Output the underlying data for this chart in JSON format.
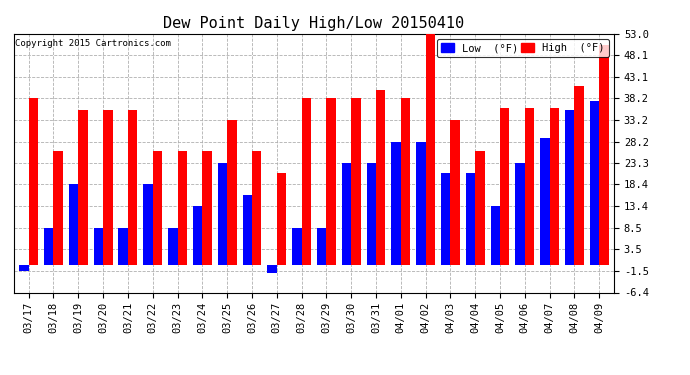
{
  "title": "Dew Point Daily High/Low 20150410",
  "copyright": "Copyright 2015 Cartronics.com",
  "categories": [
    "03/17",
    "03/18",
    "03/19",
    "03/20",
    "03/21",
    "03/22",
    "03/23",
    "03/24",
    "03/25",
    "03/26",
    "03/27",
    "03/28",
    "03/29",
    "03/30",
    "03/31",
    "04/01",
    "04/02",
    "04/03",
    "04/04",
    "04/05",
    "04/06",
    "04/07",
    "04/08",
    "04/09"
  ],
  "high": [
    38.2,
    26.0,
    35.5,
    35.5,
    35.5,
    26.0,
    26.0,
    26.0,
    33.2,
    26.0,
    21.0,
    38.2,
    38.2,
    38.2,
    40.0,
    38.2,
    53.0,
    33.2,
    26.0,
    36.0,
    36.0,
    36.0,
    41.0,
    50.5
  ],
  "low": [
    -1.5,
    8.5,
    18.4,
    8.5,
    8.5,
    18.4,
    8.5,
    13.4,
    23.3,
    16.0,
    -2.0,
    8.5,
    8.5,
    23.3,
    23.3,
    28.2,
    28.2,
    21.0,
    21.0,
    13.4,
    23.3,
    29.0,
    35.5,
    37.5
  ],
  "ylim": [
    -6.4,
    53.0
  ],
  "yticks": [
    -6.4,
    -1.5,
    3.5,
    8.5,
    13.4,
    18.4,
    23.3,
    28.2,
    33.2,
    38.2,
    43.1,
    48.1,
    53.0
  ],
  "bar_width": 0.38,
  "high_color": "#ff0000",
  "low_color": "#0000ff",
  "bg_color": "#ffffff",
  "plot_bg_color": "#ffffff",
  "grid_color": "#b0b0b0",
  "title_fontsize": 11,
  "tick_fontsize": 7.5,
  "legend_low_label": "Low  (°F)",
  "legend_high_label": "High  (°F)"
}
